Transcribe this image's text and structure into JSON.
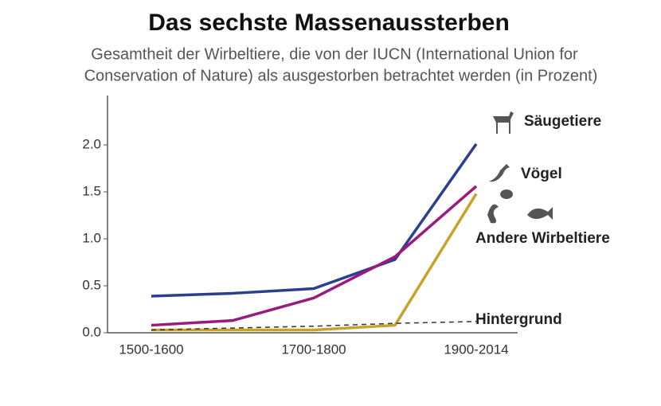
{
  "chart_data": {
    "type": "line",
    "title": "Das sechste Massenaussterben",
    "subtitle": [
      "Gesamtheit der Wirbeltiere, die von der IUCN (International Union for",
      "Conservation of Nature) als ausgestorben betrachtet werden (in Prozent)"
    ],
    "categories": [
      "1500-1600",
      null,
      "1700-1800",
      null,
      "1900-2014"
    ],
    "ylim": [
      0,
      2.5
    ],
    "yticks": [
      {
        "value": 0,
        "label": "0.0"
      },
      0.5,
      {
        "value": 1,
        "label": "1.0"
      },
      1.5,
      {
        "value": 2,
        "label": "2.0"
      }
    ],
    "series": [
      {
        "name": "Säugetiere",
        "color": "#2b3f8e",
        "values": [
          0.39,
          0.42,
          0.47,
          0.78,
          2.01
        ]
      },
      {
        "name": "Vögel",
        "color": "#9a1a7e",
        "values": [
          0.08,
          0.13,
          0.37,
          0.81,
          1.56
        ]
      },
      {
        "name": "Andere Wirbeltiere",
        "color": "#c9a22a",
        "values": [
          0.03,
          0.03,
          0.03,
          0.08,
          1.48
        ]
      },
      {
        "name": "Hintergrund",
        "color": "#333333",
        "dashed": true,
        "values": [
          0.03,
          0.05,
          0.07,
          0.1,
          0.12
        ]
      }
    ]
  }
}
